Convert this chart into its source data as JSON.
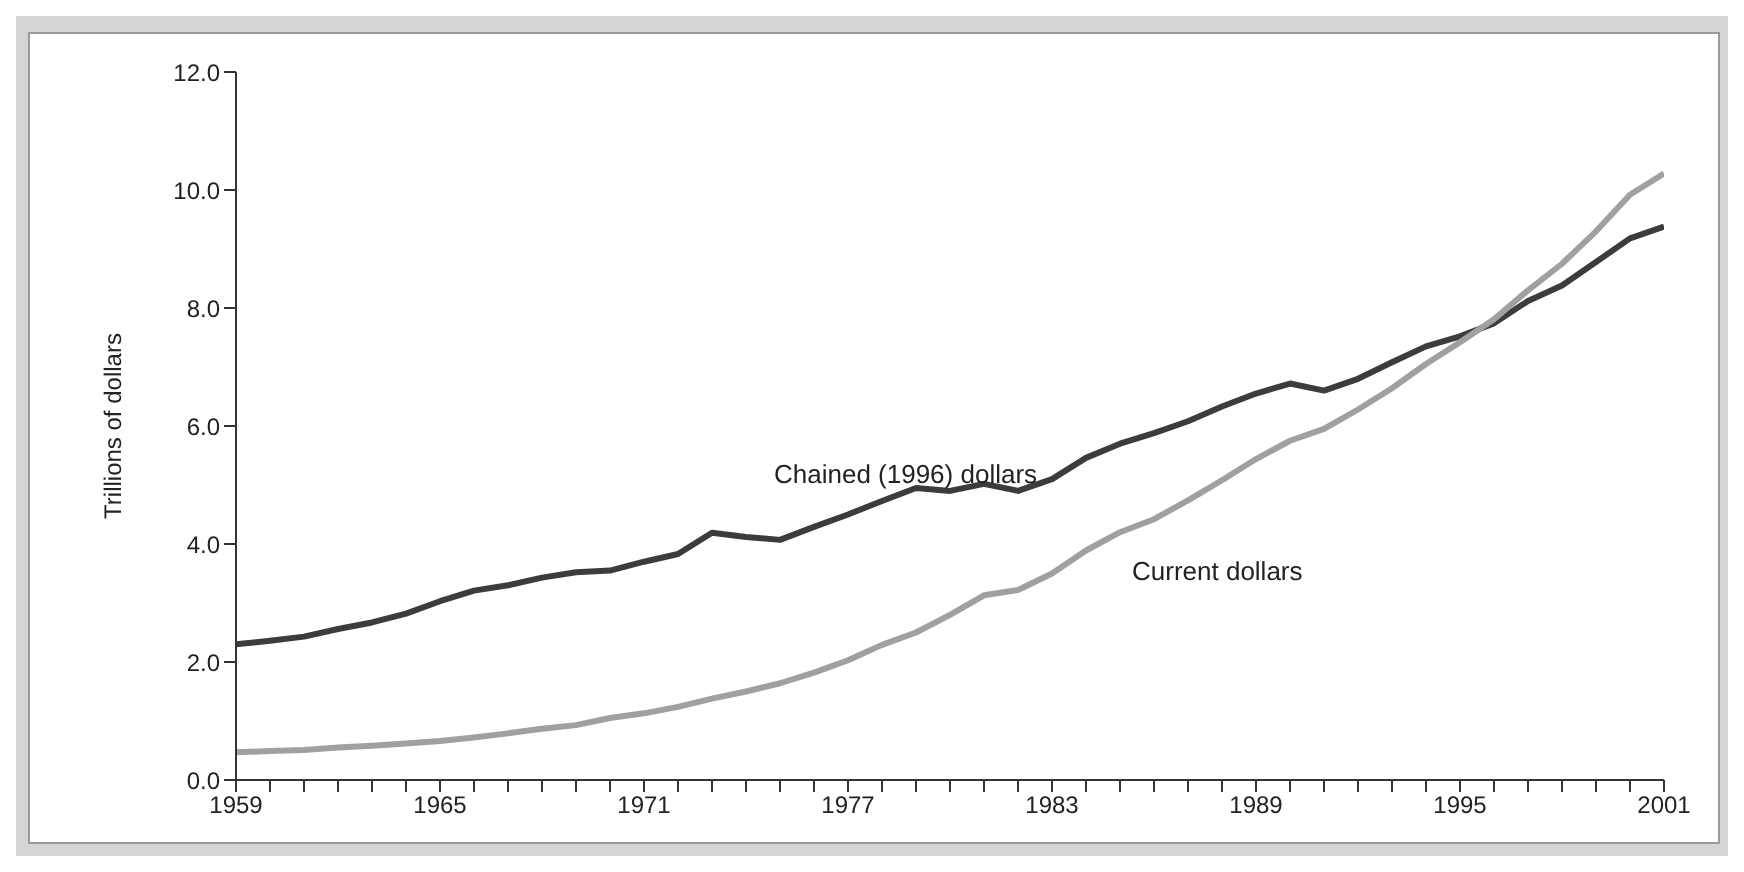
{
  "chart_data": {
    "type": "line",
    "ylabel": "Trillions of dollars",
    "x": [
      1959,
      1960,
      1961,
      1962,
      1963,
      1964,
      1965,
      1966,
      1967,
      1968,
      1969,
      1970,
      1971,
      1972,
      1973,
      1974,
      1975,
      1976,
      1977,
      1978,
      1979,
      1980,
      1981,
      1982,
      1983,
      1984,
      1985,
      1986,
      1987,
      1988,
      1989,
      1990,
      1991,
      1992,
      1993,
      1994,
      1995,
      1996,
      1997,
      1998,
      1999,
      2000,
      2001
    ],
    "series": [
      {
        "name": "Chained (1996) dollars",
        "color": "#3c3c3c",
        "values": [
          2.3,
          2.36,
          2.43,
          2.56,
          2.67,
          2.82,
          3.03,
          3.21,
          3.3,
          3.43,
          3.52,
          3.55,
          3.7,
          3.83,
          4.19,
          4.12,
          4.07,
          4.29,
          4.5,
          4.73,
          4.95,
          4.9,
          5.02,
          4.9,
          5.1,
          5.46,
          5.7,
          5.88,
          6.08,
          6.33,
          6.55,
          6.72,
          6.6,
          6.8,
          7.08,
          7.35,
          7.52,
          7.74,
          8.12,
          8.38,
          8.78,
          9.18,
          9.38
        ]
      },
      {
        "name": "Current dollars",
        "color": "#a0a0a0",
        "values": [
          0.47,
          0.49,
          0.51,
          0.55,
          0.58,
          0.62,
          0.66,
          0.72,
          0.79,
          0.87,
          0.93,
          1.05,
          1.13,
          1.24,
          1.38,
          1.5,
          1.64,
          1.82,
          2.03,
          2.29,
          2.5,
          2.8,
          3.13,
          3.22,
          3.5,
          3.89,
          4.2,
          4.42,
          4.74,
          5.08,
          5.44,
          5.75,
          5.95,
          6.28,
          6.64,
          7.05,
          7.42,
          7.81,
          8.3,
          8.75,
          9.3,
          9.92,
          10.28
        ]
      }
    ],
    "xlim": [
      1959,
      2001
    ],
    "xticks": [
      1959,
      {
        "value": 1960,
        "label": null
      },
      {
        "value": 1961,
        "label": null
      },
      {
        "value": 1962,
        "label": null
      },
      {
        "value": 1963,
        "label": null
      },
      {
        "value": 1964,
        "label": null
      },
      1965,
      {
        "value": 1966,
        "label": null
      },
      {
        "value": 1967,
        "label": null
      },
      {
        "value": 1968,
        "label": null
      },
      {
        "value": 1969,
        "label": null
      },
      {
        "value": 1970,
        "label": null
      },
      1971,
      {
        "value": 1972,
        "label": null
      },
      {
        "value": 1973,
        "label": null
      },
      {
        "value": 1974,
        "label": null
      },
      {
        "value": 1975,
        "label": null
      },
      {
        "value": 1976,
        "label": null
      },
      1977,
      {
        "value": 1978,
        "label": null
      },
      {
        "value": 1979,
        "label": null
      },
      {
        "value": 1980,
        "label": null
      },
      {
        "value": 1981,
        "label": null
      },
      {
        "value": 1982,
        "label": null
      },
      1983,
      {
        "value": 1984,
        "label": null
      },
      {
        "value": 1985,
        "label": null
      },
      {
        "value": 1986,
        "label": null
      },
      {
        "value": 1987,
        "label": null
      },
      {
        "value": 1988,
        "label": null
      },
      1989,
      {
        "value": 1990,
        "label": null
      },
      {
        "value": 1991,
        "label": null
      },
      {
        "value": 1992,
        "label": null
      },
      {
        "value": 1993,
        "label": null
      },
      {
        "value": 1994,
        "label": null
      },
      1995,
      {
        "value": 1996,
        "label": null
      },
      {
        "value": 1997,
        "label": null
      },
      {
        "value": 1998,
        "label": null
      },
      {
        "value": 1999,
        "label": null
      },
      {
        "value": 2000,
        "label": null
      },
      2001
    ],
    "ylim": [
      0,
      12
    ],
    "yticks": [
      {
        "value": 0,
        "label": "0.0"
      },
      {
        "value": 2,
        "label": "2.0"
      },
      {
        "value": 4,
        "label": "4.0"
      },
      {
        "value": 6,
        "label": "6.0"
      },
      {
        "value": 8,
        "label": "8.0"
      },
      {
        "value": 10,
        "label": "10.0"
      },
      {
        "value": 12,
        "label": "12.0"
      }
    ],
    "grid": false,
    "legend": false,
    "marker": "none",
    "line_style": "solid"
  }
}
